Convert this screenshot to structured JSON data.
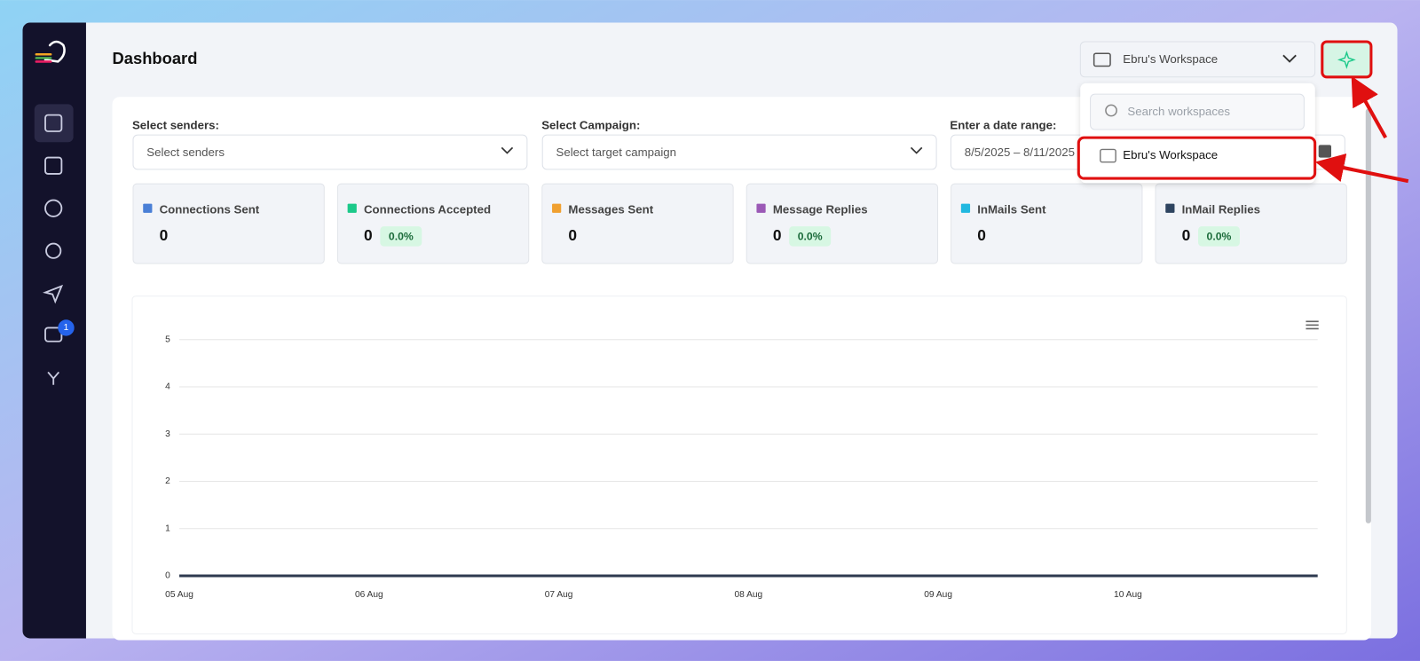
{
  "header": {
    "title": "Dashboard",
    "workspace": "Ebru's Workspace"
  },
  "sidebar": {
    "badge": "1"
  },
  "workspace_menu": {
    "search_placeholder": "Search workspaces",
    "items": [
      "Ebru's Workspace"
    ]
  },
  "filters": [
    {
      "label": "Select senders:",
      "placeholder": "Select senders"
    },
    {
      "label": "Select Campaign:",
      "placeholder": "Select target campaign"
    },
    {
      "label": "Enter a date range:",
      "placeholder": "8/5/2025 – 8/11/2025"
    }
  ],
  "stats": [
    {
      "label": "Connections Sent",
      "value": 0,
      "color": "#4a7fd6"
    },
    {
      "label": "Connections Accepted",
      "value": 0,
      "rate": "0.0%",
      "color": "#1cc98a"
    },
    {
      "label": "Messages Sent",
      "value": 0,
      "color": "#f0a030"
    },
    {
      "label": "Message Replies",
      "value": 0,
      "rate": "0.0%",
      "color": "#9b59b6"
    },
    {
      "label": "InMails Sent",
      "value": 0,
      "color": "#22b8e0"
    },
    {
      "label": "InMail Replies",
      "value": 0,
      "rate": "0.0%",
      "color": "#2e4460"
    }
  ],
  "chart_data": {
    "type": "line",
    "categories": [
      "05 Aug",
      "06 Aug",
      "07 Aug",
      "08 Aug",
      "09 Aug",
      "10 Aug",
      null
    ],
    "values": [
      0,
      0,
      0,
      0,
      0,
      0,
      0
    ],
    "color": "#2e3a4f",
    "ylim": [
      0,
      5
    ],
    "yticks": [
      0,
      1,
      2,
      3,
      4,
      5
    ],
    "grid": true
  }
}
